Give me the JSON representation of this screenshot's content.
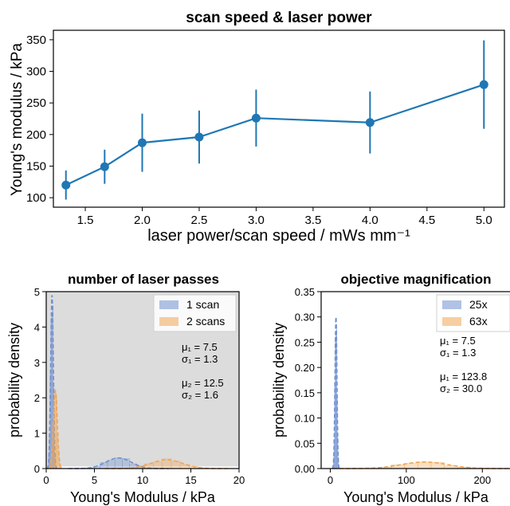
{
  "chart_data": [
    {
      "type": "line",
      "title": "scan speed & laser power",
      "xlabel": "laser power/scan speed / mWs mm⁻¹",
      "ylabel": "Young's modulus / kPa",
      "xlim": [
        1.22,
        5.18
      ],
      "ylim": [
        85,
        365
      ],
      "xticks": [
        "1.5",
        "2.0",
        "2.5",
        "3.0",
        "3.5",
        "4.0",
        "4.5",
        "5.0"
      ],
      "yticks": [
        "100",
        "150",
        "200",
        "250",
        "300",
        "350"
      ],
      "series": [
        {
          "x": [
            1.33,
            1.67,
            2.0,
            2.5,
            3.0,
            4.0,
            5.0
          ],
          "y": [
            120,
            149,
            187,
            196,
            226,
            219,
            279
          ],
          "yerr": [
            23,
            27,
            46,
            42,
            45,
            49,
            70
          ]
        }
      ],
      "color": "#1f77b4"
    },
    {
      "type": "histogram",
      "title": "number of laser passes",
      "xlabel": "Young's Modulus / kPa",
      "ylabel": "probability density",
      "xlim": [
        0,
        20
      ],
      "ylim": [
        0,
        5
      ],
      "xticks": [
        "0",
        "5",
        "10",
        "15",
        "20"
      ],
      "yticks": [
        "0",
        "1",
        "2",
        "3",
        "4",
        "5"
      ],
      "legend": {
        "position": "top-right",
        "entries": [
          "1 scan",
          "2 scans"
        ]
      },
      "annotations": [
        "μ₁ = 7.5",
        "σ₁ = 1.3",
        "μ₂ = 12.5",
        "σ₂ = 1.6"
      ],
      "shaded_region": [
        0,
        20
      ],
      "series": [
        {
          "name": "1 scan",
          "color": "#6f8fcf",
          "peaks": [
            {
              "x": 0.6,
              "w": 0.14,
              "h": 4.9
            },
            {
              "x": 7.5,
              "w": 1.3,
              "h": 0.3
            }
          ]
        },
        {
          "name": "2 scans",
          "color": "#f0a555",
          "peaks": [
            {
              "x": 0.95,
              "w": 0.2,
              "h": 2.2
            },
            {
              "x": 12.5,
              "w": 1.6,
              "h": 0.25
            }
          ]
        }
      ]
    },
    {
      "type": "histogram",
      "title": "objective magnification",
      "xlabel": "Young's Modulus / kPa",
      "ylabel": "probability density",
      "xlim": [
        -12,
        250
      ],
      "ylim": [
        0,
        0.35
      ],
      "xticks": [
        "0",
        "100",
        "200"
      ],
      "yticks": [
        "0.00",
        "0.05",
        "0.10",
        "0.15",
        "0.20",
        "0.25",
        "0.30",
        "0.35"
      ],
      "legend": {
        "position": "top-right",
        "entries": [
          "25x",
          "63x"
        ]
      },
      "annotations": [
        "μ₁ = 7.5",
        "σ₁ = 1.3",
        "μ₁ = 123.8",
        "σ₂ = 30.0"
      ],
      "series": [
        {
          "name": "25x",
          "color": "#6f8fcf",
          "peaks": [
            {
              "x": 7.5,
              "w": 1.3,
              "h": 0.3
            }
          ]
        },
        {
          "name": "63x",
          "color": "#f0a555",
          "peaks": [
            {
              "x": 123.8,
              "w": 30.0,
              "h": 0.013
            }
          ]
        }
      ]
    }
  ]
}
